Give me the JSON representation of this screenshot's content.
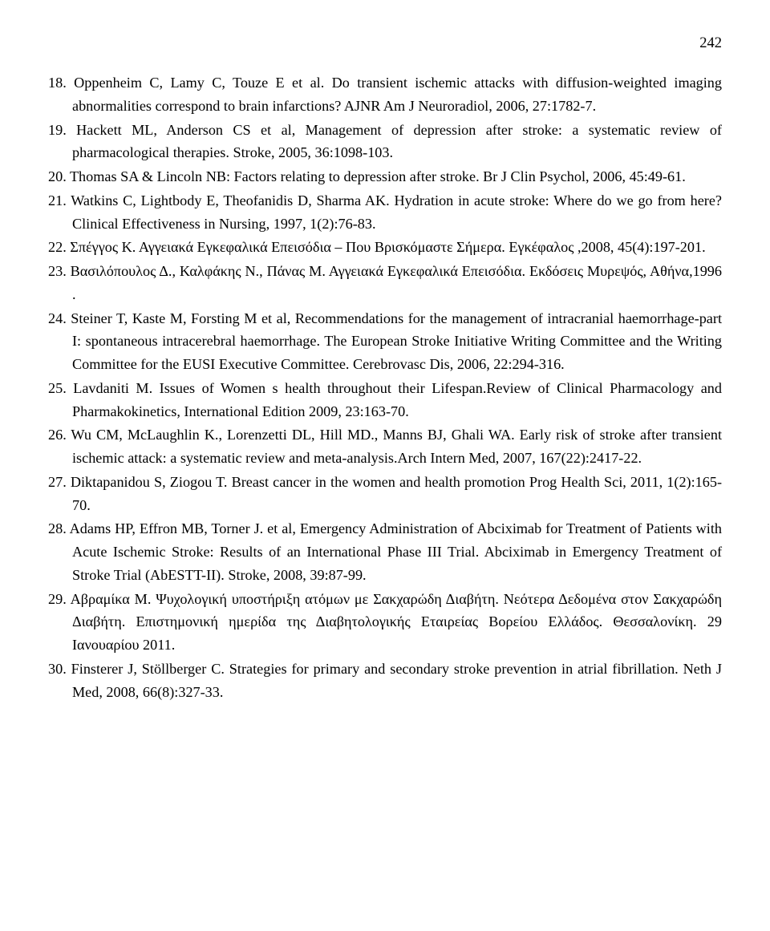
{
  "page_number": "242",
  "references": [
    {
      "num": "18.",
      "text": "Oppenheim C, Lamy C, Touze E et al. Do transient ischemic attacks with diffusion-weighted imaging abnormalities correspond to brain infarctions? AJNR Am J Neuroradiol, 2006, 27:1782-7."
    },
    {
      "num": "19.",
      "text": "Hackett ML, Anderson CS et al, Management of depression after stroke: a systematic review of pharmacological therapies. Stroke, 2005, 36:1098-103."
    },
    {
      "num": "20.",
      "text": "Thomas SA & Lincoln NB: Factors relating to depression after stroke. Br J Clin Psychol, 2006, 45:49-61."
    },
    {
      "num": "21.",
      "text": "Watkins C, Lightbody E, Theofanidis D, Sharma AK. Hydration in acute stroke: Where do we go from here? Clinical Effectiveness in Nursing, 1997, 1(2):76-83."
    },
    {
      "num": "22.",
      "text": "Σπέγγος Κ. Αγγειακά Εγκεφαλικά Επεισόδια – Που Βρισκόμαστε Σήμερα. Εγκέφαλος ,2008, 45(4):197-201."
    },
    {
      "num": "23.",
      "text": "Βασιλόπουλος Δ., Καλφάκης Ν., Πάνας Μ. Αγγειακά  Εγκεφαλικά Επεισόδια. Εκδόσεις Μυρεψός, Αθήνα,1996 ."
    },
    {
      "num": "24.",
      "text": "Steiner T, Kaste M, Forsting M et al, Recommendations for the management of intracranial haemorrhage-part I: spontaneous intracerebral haemorrhage. The European Stroke Initiative Writing Committee and the Writing Committee for the EUSI Executive Committee. Cerebrovasc Dis, 2006, 22:294-316."
    },
    {
      "num": "25.",
      "text": "Lavdaniti M. Issues of Women s health throughout their Lifespan.Review of Clinical Pharmacology and Pharmakokinetics, International Edition 2009, 23:163-70."
    },
    {
      "num": "26.",
      "text": "Wu CM, McLaughlin K., Lorenzetti DL, Hill MD., Manns BJ, Ghali WA. Early risk of stroke after transient ischemic attack: a systematic review and meta-analysis.Arch Intern Med, 2007, 167(22):2417-22."
    },
    {
      "num": "27.",
      "text": "Diktapanidou S, Ziogou T. Breast cancer in the women and health promotion Prog Health Sci, 2011, 1(2):165-70."
    },
    {
      "num": "28.",
      "text": "Adams HP, Effron MB, Torner J. et al, Emergency Administration of Abciximab for Treatment of Patients with Acute Ischemic Stroke: Results of an International Phase III Trial. Abciximab in Emergency Treatment of Stroke Trial (AbESTT-II). Stroke, 2008, 39:87-99."
    },
    {
      "num": "29.",
      "text": "Αβραμίκα Μ. Ψυχολογική υποστήριξη ατόμων με Σακχαρώδη Διαβήτη. Νεότερα Δεδομένα στον Σακχαρώδη Διαβήτη. Επιστημονική ημερίδα της Διαβητολογικής Εταιρείας Βορείου Ελλάδος. Θεσσαλονίκη. 29 Ιανουαρίου 2011."
    },
    {
      "num": "30.",
      "text": "Finsterer J, Stöllberger C. Strategies for primary and secondary stroke prevention in atrial fibrillation. Neth J Med, 2008, 66(8):327-33."
    }
  ]
}
